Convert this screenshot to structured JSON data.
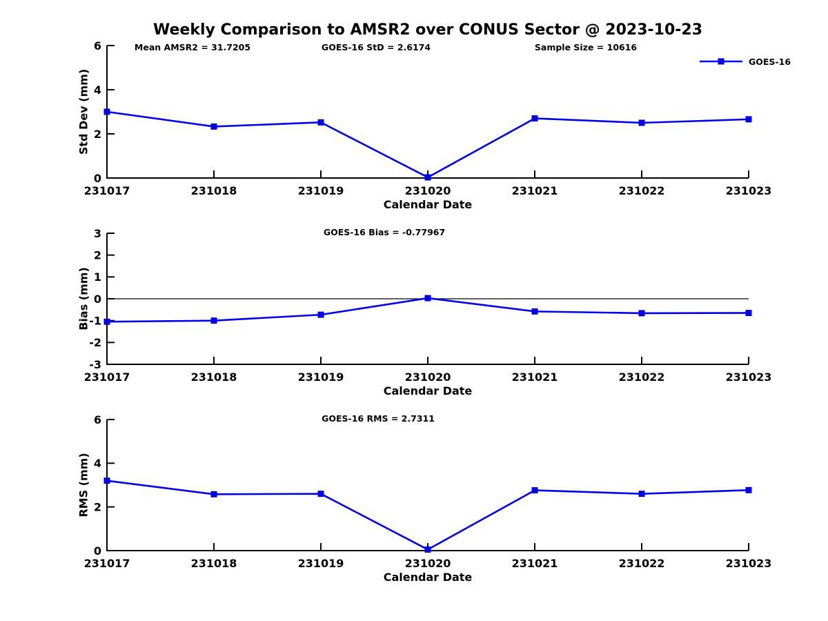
{
  "title": "Weekly Comparison to AMSR2 over CONUS Sector @ 2023-10-23",
  "legend": {
    "label": "GOES-16",
    "position": "top-right"
  },
  "colors": {
    "series": "#0000EE",
    "axis": "#000000",
    "text": "#000000",
    "zero_line": "#000000",
    "background": "#FFFFFF"
  },
  "chart_data": [
    {
      "type": "line",
      "id": "std-dev",
      "ylabel": "Std Dev (mm)",
      "xlabel": "Calendar Date",
      "ylim": [
        0,
        6
      ],
      "yticks": [
        0,
        2,
        4,
        6
      ],
      "categories": [
        "231017",
        "231018",
        "231019",
        "231020",
        "231021",
        "231022",
        "231023"
      ],
      "series": [
        {
          "name": "GOES-16",
          "values": [
            3.0,
            2.33,
            2.52,
            0.03,
            2.7,
            2.5,
            2.66
          ]
        }
      ],
      "annotations": [
        "Mean AMSR2 = 31.7205",
        "GOES-16 StD = 2.6174",
        "Sample Size = 10616"
      ],
      "grid": false,
      "zero_line": false,
      "legend_position": "top-right"
    },
    {
      "type": "line",
      "id": "bias",
      "ylabel": "Bias (mm)",
      "xlabel": "Calendar Date",
      "ylim": [
        -3,
        3
      ],
      "yticks": [
        -3,
        -2,
        -1,
        0,
        1,
        2,
        3
      ],
      "categories": [
        "231017",
        "231018",
        "231019",
        "231020",
        "231021",
        "231022",
        "231023"
      ],
      "series": [
        {
          "name": "GOES-16",
          "values": [
            -1.05,
            -1.0,
            -0.73,
            0.03,
            -0.58,
            -0.66,
            -0.65
          ]
        }
      ],
      "annotations": [
        "GOES-16 Bias  = -0.77967"
      ],
      "grid": false,
      "zero_line": true
    },
    {
      "type": "line",
      "id": "rms",
      "ylabel": "RMS (mm)",
      "xlabel": "Calendar Date",
      "ylim": [
        0,
        6
      ],
      "yticks": [
        0,
        2,
        4,
        6
      ],
      "categories": [
        "231017",
        "231018",
        "231019",
        "231020",
        "231021",
        "231022",
        "231023"
      ],
      "series": [
        {
          "name": "GOES-16",
          "values": [
            3.2,
            2.58,
            2.6,
            0.05,
            2.76,
            2.6,
            2.77
          ]
        }
      ],
      "annotations": [
        "GOES-16 RMS = 2.7311"
      ],
      "grid": false,
      "zero_line": false
    }
  ]
}
